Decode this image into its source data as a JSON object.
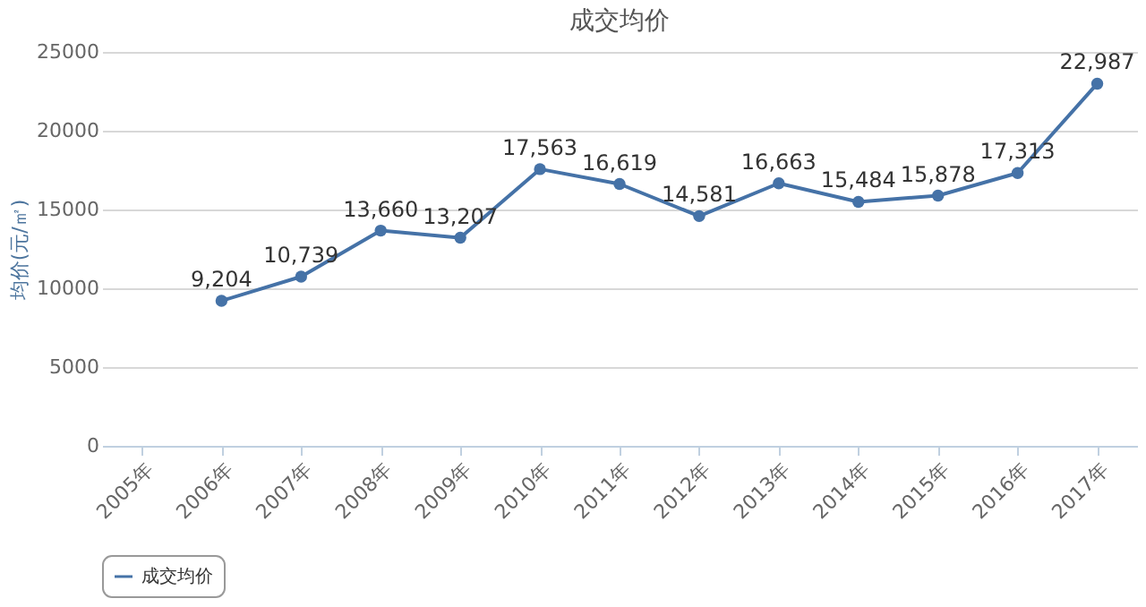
{
  "chart_data": {
    "type": "line",
    "title": "成交均价",
    "ylabel": "均价(元/㎡)",
    "categories": [
      "2005年",
      "2006年",
      "2007年",
      "2008年",
      "2009年",
      "2010年",
      "2011年",
      "2012年",
      "2013年",
      "2014年",
      "2015年",
      "2016年",
      "2017年"
    ],
    "series": [
      {
        "name": "成交均价",
        "color": "#4572a7",
        "values": [
          null,
          9204,
          10739,
          13660,
          13207,
          17563,
          16619,
          14581,
          16663,
          15484,
          15878,
          17313,
          22987
        ],
        "value_labels": [
          null,
          "9,204",
          "10,739",
          "13,660",
          "13,207",
          "17,563",
          "16,619",
          "14,581",
          "16,663",
          "15,484",
          "15,878",
          "17,313",
          "22,987"
        ]
      }
    ],
    "ylim": [
      0,
      25000
    ],
    "yticks": [
      0,
      5000,
      10000,
      15000,
      20000,
      25000
    ],
    "grid": "y",
    "legend": "bottom",
    "marker": "circle"
  }
}
